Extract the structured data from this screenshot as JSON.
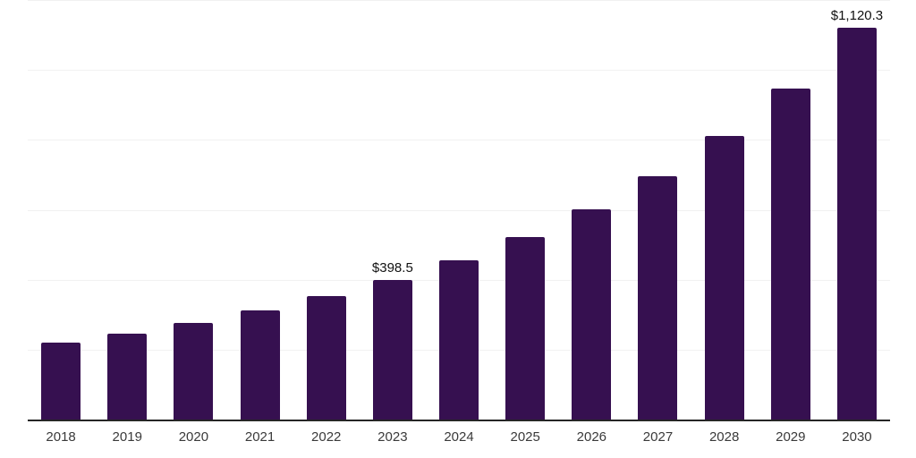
{
  "chart_data": {
    "type": "bar",
    "title": "",
    "xlabel": "",
    "ylabel": "",
    "categories": [
      "2018",
      "2019",
      "2020",
      "2021",
      "2022",
      "2023",
      "2024",
      "2025",
      "2026",
      "2027",
      "2028",
      "2029",
      "2030"
    ],
    "values": [
      220,
      245,
      276,
      311,
      352,
      398.5,
      455,
      521,
      602,
      695,
      810,
      948,
      1120.3
    ],
    "bar_labels": [
      "",
      "",
      "",
      "",
      "",
      "$398.5",
      "",
      "",
      "",
      "",
      "",
      "",
      "$1,120.3"
    ],
    "ylim": [
      0,
      1200
    ],
    "gridline_step": 200,
    "grid": "horizontal only",
    "legend": "none",
    "y_axis_ticks": "none shown",
    "colors": {
      "bar_fill": "#361050",
      "gridline": "#f1f1f1",
      "axis_line": "#262626",
      "tick_label": "#3a3a3a",
      "data_label": "#111111",
      "background": "#ffffff"
    }
  }
}
